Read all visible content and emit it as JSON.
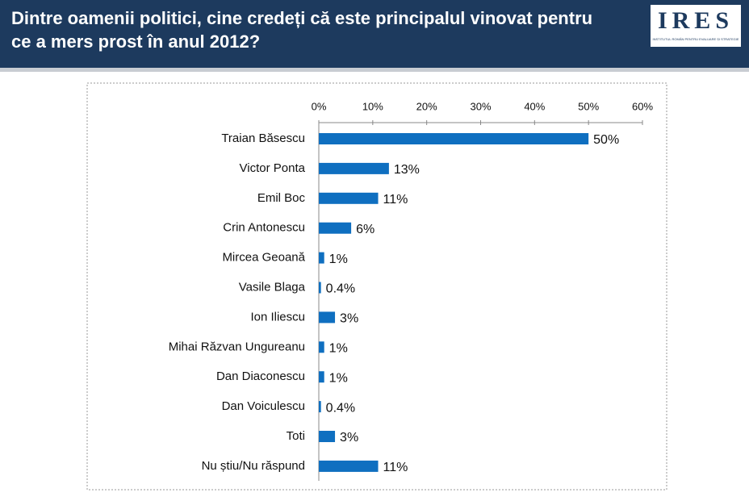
{
  "header": {
    "title": "Dintre oamenii politici, cine credeți că este principalul vinovat pentru ce a mers prost în anul 2012?",
    "logo": "IRES",
    "logo_subtitle": "INSTITUTUL ROMÂN PENTRU EVALUARE ȘI STRATEGIE"
  },
  "chart_data": {
    "type": "hbar",
    "categories": [
      "Traian Băsescu",
      "Victor Ponta",
      "Emil Boc",
      "Crin Antonescu",
      "Mircea Geoană",
      "Vasile Blaga",
      "Ion Iliescu",
      "Mihai Răzvan Ungureanu",
      "Dan Diaconescu",
      "Dan Voiculescu",
      "Toti",
      "Nu știu/Nu răspund"
    ],
    "values": [
      50,
      13,
      11,
      6,
      1,
      0.4,
      3,
      1,
      1,
      0.4,
      3,
      11
    ],
    "value_labels": [
      "50%",
      "13%",
      "11%",
      "6%",
      "1%",
      "0.4%",
      "3%",
      "1%",
      "1%",
      "0.4%",
      "3%",
      "11%"
    ],
    "color": "#0f6fc0",
    "xlim": [
      0,
      60
    ],
    "xticks": [
      {
        "value": 0,
        "label": "0%"
      },
      {
        "value": 10,
        "label": "10%"
      },
      {
        "value": 20,
        "label": "20%"
      },
      {
        "value": 30,
        "label": "30%"
      },
      {
        "value": 40,
        "label": "40%"
      },
      {
        "value": 50,
        "label": "50%"
      },
      {
        "value": 60,
        "label": "60%"
      }
    ]
  }
}
